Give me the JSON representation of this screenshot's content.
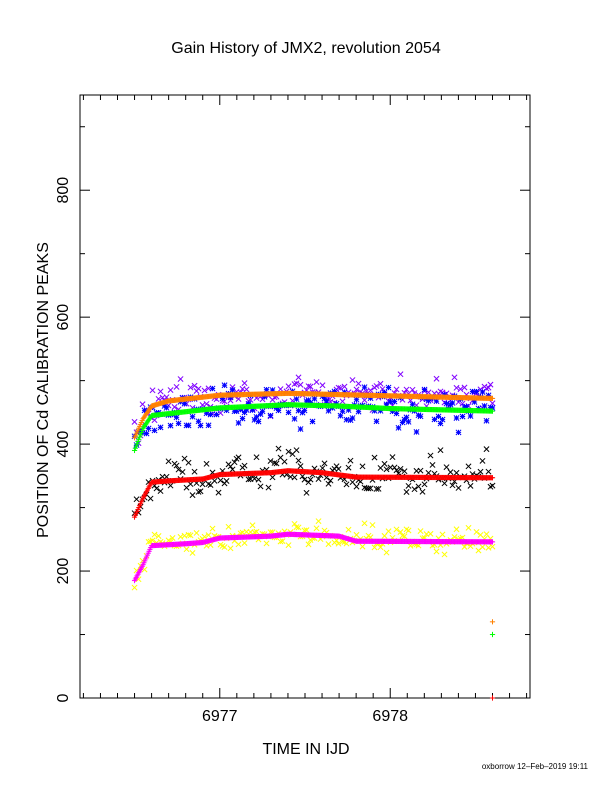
{
  "chart_data": {
    "type": "scatter",
    "title": "Gain History of JMX2, revolution 2054",
    "xlabel": "TIME IN IJD",
    "ylabel": "POSITION OF Cd CALIBRATION PEAKS",
    "footer": "oxborrow 12–Feb–2019 19:11",
    "xlim": [
      6976.18,
      6978.82
    ],
    "ylim": [
      0,
      950
    ],
    "xticks": [
      6977,
      6978
    ],
    "xtick_labels": [
      "6977",
      "6978"
    ],
    "yticks": [
      0,
      200,
      400,
      600,
      800
    ],
    "ytick_labels": [
      "0",
      "200",
      "400",
      "600",
      "800"
    ],
    "grid": false,
    "legend": "none",
    "x_start": 6976.5,
    "x_end": 6978.6,
    "series": [
      {
        "marker": "x",
        "color": "#7f00ff",
        "noise": 12,
        "curve": [
          [
            6976.5,
            410
          ],
          [
            6976.6,
            455
          ],
          [
            6976.7,
            470
          ],
          [
            6977.0,
            475
          ],
          [
            6977.5,
            480
          ],
          [
            6978.0,
            478
          ],
          [
            6978.6,
            475
          ]
        ]
      },
      {
        "marker": "*",
        "color": "#0000ff",
        "noise": 14,
        "curve": [
          [
            6976.5,
            395
          ],
          [
            6976.6,
            440
          ],
          [
            6976.7,
            450
          ],
          [
            6977.0,
            458
          ],
          [
            6977.5,
            465
          ],
          [
            6978.0,
            460
          ],
          [
            6978.6,
            455
          ]
        ]
      },
      {
        "marker": "x",
        "color": "#000000",
        "noise": 13,
        "curve": [
          [
            6976.5,
            285
          ],
          [
            6976.6,
            340
          ],
          [
            6976.7,
            345
          ],
          [
            6977.0,
            350
          ],
          [
            6977.4,
            360
          ],
          [
            6978.0,
            350
          ],
          [
            6978.6,
            350
          ]
        ]
      },
      {
        "marker": "x",
        "color": "#ffff00",
        "noise": 10,
        "curve": [
          [
            6976.5,
            190
          ],
          [
            6976.6,
            240
          ],
          [
            6976.7,
            245
          ],
          [
            6977.0,
            250
          ],
          [
            6977.4,
            260
          ],
          [
            6978.0,
            250
          ],
          [
            6978.6,
            250
          ]
        ]
      },
      {
        "marker": "+",
        "color": "#ff8000",
        "noise": 0,
        "curve": [
          [
            6976.5,
            410
          ],
          [
            6976.55,
            440
          ],
          [
            6976.6,
            460
          ],
          [
            6976.7,
            468
          ],
          [
            6977.0,
            477
          ],
          [
            6977.4,
            480
          ],
          [
            6977.7,
            478
          ],
          [
            6978.0,
            476
          ],
          [
            6978.6,
            472
          ]
        ]
      },
      {
        "marker": "+",
        "color": "#00ff00",
        "noise": 0,
        "curve": [
          [
            6976.5,
            390
          ],
          [
            6976.55,
            425
          ],
          [
            6976.6,
            445
          ],
          [
            6976.7,
            448
          ],
          [
            6977.0,
            457
          ],
          [
            6977.4,
            462
          ],
          [
            6977.7,
            460
          ],
          [
            6978.0,
            456
          ],
          [
            6978.6,
            452
          ]
        ]
      },
      {
        "marker": "+",
        "color": "#ff0000",
        "noise": 0,
        "curve": [
          [
            6976.5,
            285
          ],
          [
            6976.55,
            315
          ],
          [
            6976.6,
            340
          ],
          [
            6976.7,
            342
          ],
          [
            6976.9,
            345
          ],
          [
            6977.0,
            352
          ],
          [
            6977.3,
            355
          ],
          [
            6977.4,
            358
          ],
          [
            6977.6,
            355
          ],
          [
            6977.8,
            348
          ],
          [
            6978.6,
            347
          ]
        ]
      },
      {
        "marker": "+",
        "color": "#ff00ff",
        "noise": 0,
        "curve": [
          [
            6976.5,
            185
          ],
          [
            6976.55,
            210
          ],
          [
            6976.6,
            240
          ],
          [
            6976.8,
            243
          ],
          [
            6976.9,
            245
          ],
          [
            6977.0,
            252
          ],
          [
            6977.3,
            255
          ],
          [
            6977.4,
            258
          ],
          [
            6977.7,
            255
          ],
          [
            6977.8,
            247
          ],
          [
            6978.6,
            246
          ]
        ]
      }
    ],
    "extra_points": [
      {
        "x": 6978.6,
        "y": 120,
        "marker": "+",
        "color": "#ff8000"
      },
      {
        "x": 6978.6,
        "y": 100,
        "marker": "+",
        "color": "#00ff00"
      },
      {
        "x": 6978.6,
        "y": 0,
        "marker": "+",
        "color": "#ff0000"
      }
    ]
  }
}
